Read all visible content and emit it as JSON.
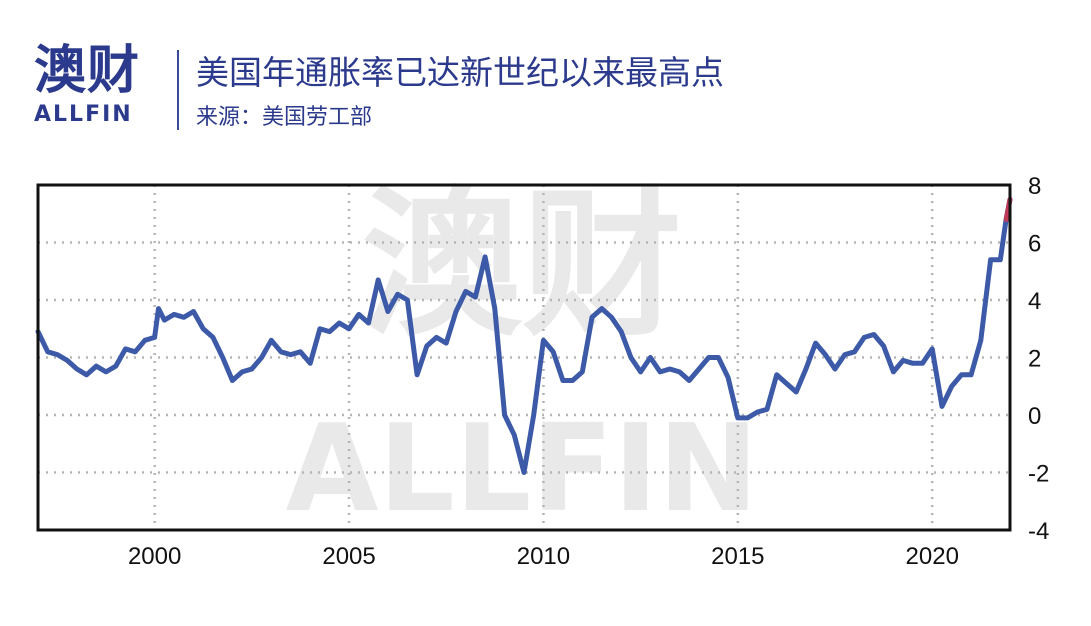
{
  "header": {
    "logo_text": "澳财",
    "logo_sub": "ALLFIN",
    "title": "美国年通胀率已达新世纪以来最高点",
    "source": "来源：美国劳工部"
  },
  "watermark": {
    "main": "澳财",
    "sub": "ALLFIN"
  },
  "colors": {
    "line": "#3d5aa8",
    "line_end": "#c03a5a",
    "brand": "#2b3a8c",
    "grid": "#b5b5b5"
  },
  "chart_data": {
    "type": "line",
    "title": "美国年通胀率已达新世纪以来最高点",
    "xlabel": "",
    "ylabel": "",
    "xlim": [
      1997.0,
      2022.0
    ],
    "ylim": [
      -4,
      8
    ],
    "x_ticks": [
      2000,
      2005,
      2010,
      2015,
      2020
    ],
    "y_ticks": [
      8,
      6,
      4,
      2,
      0,
      -2,
      -4
    ],
    "y_axis_side": "right",
    "grid": true,
    "series": [
      {
        "x": [
          1997.0,
          1997.25,
          1997.5,
          1997.75,
          1998.0,
          1998.25,
          1998.5,
          1998.75,
          1999.0,
          1999.25,
          1999.5,
          1999.75,
          2000.0,
          2000.1,
          2000.25,
          2000.5,
          2000.75,
          2001.0,
          2001.25,
          2001.5,
          2001.75,
          2002.0,
          2002.25,
          2002.5,
          2002.75,
          2003.0,
          2003.25,
          2003.5,
          2003.75,
          2004.0,
          2004.25,
          2004.5,
          2004.75,
          2005.0,
          2005.25,
          2005.5,
          2005.75,
          2006.0,
          2006.25,
          2006.5,
          2006.75,
          2007.0,
          2007.25,
          2007.5,
          2007.75,
          2008.0,
          2008.25,
          2008.5,
          2008.75,
          2009.0,
          2009.25,
          2009.5,
          2009.75,
          2010.0,
          2010.25,
          2010.5,
          2010.75,
          2011.0,
          2011.25,
          2011.5,
          2011.75,
          2012.0,
          2012.25,
          2012.5,
          2012.75,
          2013.0,
          2013.25,
          2013.5,
          2013.75,
          2014.0,
          2014.25,
          2014.5,
          2014.75,
          2015.0,
          2015.25,
          2015.5,
          2015.75,
          2016.0,
          2016.25,
          2016.5,
          2016.75,
          2017.0,
          2017.25,
          2017.5,
          2017.75,
          2018.0,
          2018.25,
          2018.5,
          2018.75,
          2019.0,
          2019.25,
          2019.5,
          2019.75,
          2020.0,
          2020.25,
          2020.5,
          2020.75,
          2021.0,
          2021.25,
          2021.5,
          2021.75,
          2021.9,
          2022.0
        ],
        "values": [
          2.9,
          2.2,
          2.1,
          1.9,
          1.6,
          1.4,
          1.7,
          1.5,
          1.7,
          2.3,
          2.2,
          2.6,
          2.7,
          3.7,
          3.3,
          3.5,
          3.4,
          3.6,
          3.0,
          2.7,
          2.0,
          1.2,
          1.5,
          1.6,
          2.0,
          2.6,
          2.2,
          2.1,
          2.2,
          1.8,
          3.0,
          2.9,
          3.2,
          3.0,
          3.5,
          3.2,
          4.7,
          3.6,
          4.2,
          4.0,
          1.4,
          2.4,
          2.7,
          2.5,
          3.6,
          4.3,
          4.1,
          5.5,
          3.7,
          0.0,
          -0.7,
          -2.0,
          0.0,
          2.6,
          2.2,
          1.2,
          1.2,
          1.5,
          3.4,
          3.7,
          3.4,
          2.9,
          2.0,
          1.5,
          2.0,
          1.5,
          1.6,
          1.5,
          1.2,
          1.6,
          2.0,
          2.0,
          1.3,
          -0.1,
          -0.1,
          0.1,
          0.2,
          1.4,
          1.1,
          0.8,
          1.6,
          2.5,
          2.1,
          1.6,
          2.1,
          2.2,
          2.7,
          2.8,
          2.4,
          1.5,
          1.9,
          1.8,
          1.8,
          2.3,
          0.3,
          1.0,
          1.4,
          1.4,
          2.6,
          5.4,
          5.4,
          6.8,
          7.5
        ]
      }
    ]
  }
}
